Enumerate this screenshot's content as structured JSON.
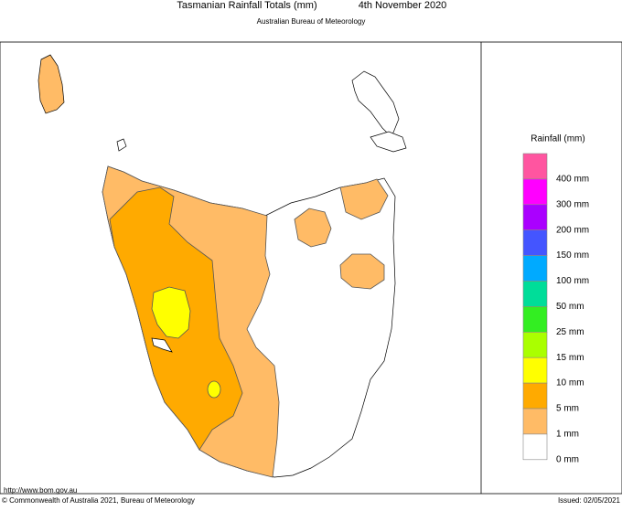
{
  "header": {
    "title": "Tasmanian Rainfall Totals (mm)",
    "date": "4th November 2020",
    "subtitle": "Australian Bureau of Meteorology"
  },
  "legend": {
    "title": "Rainfall (mm)",
    "items": [
      {
        "label": "400 mm",
        "color": "#ff55a0"
      },
      {
        "label": "300 mm",
        "color": "#ff00ff"
      },
      {
        "label": "200 mm",
        "color": "#aa00ff"
      },
      {
        "label": "150 mm",
        "color": "#4455ff"
      },
      {
        "label": "100 mm",
        "color": "#00aaff"
      },
      {
        "label": "50 mm",
        "color": "#00dd99"
      },
      {
        "label": "25 mm",
        "color": "#33ee22"
      },
      {
        "label": "15 mm",
        "color": "#aaff00"
      },
      {
        "label": "10 mm",
        "color": "#ffff00"
      },
      {
        "label": "5 mm",
        "color": "#ffaa00"
      },
      {
        "label": "1 mm",
        "color": "#ffbb66"
      },
      {
        "label": "0 mm",
        "color": "#ffffff"
      }
    ]
  },
  "footer": {
    "url": "http://www.bom.gov.au",
    "copyright": "© Commonwealth of Australia 2021, Bureau of Meteorology",
    "issued": "Issued: 02/05/2021"
  }
}
